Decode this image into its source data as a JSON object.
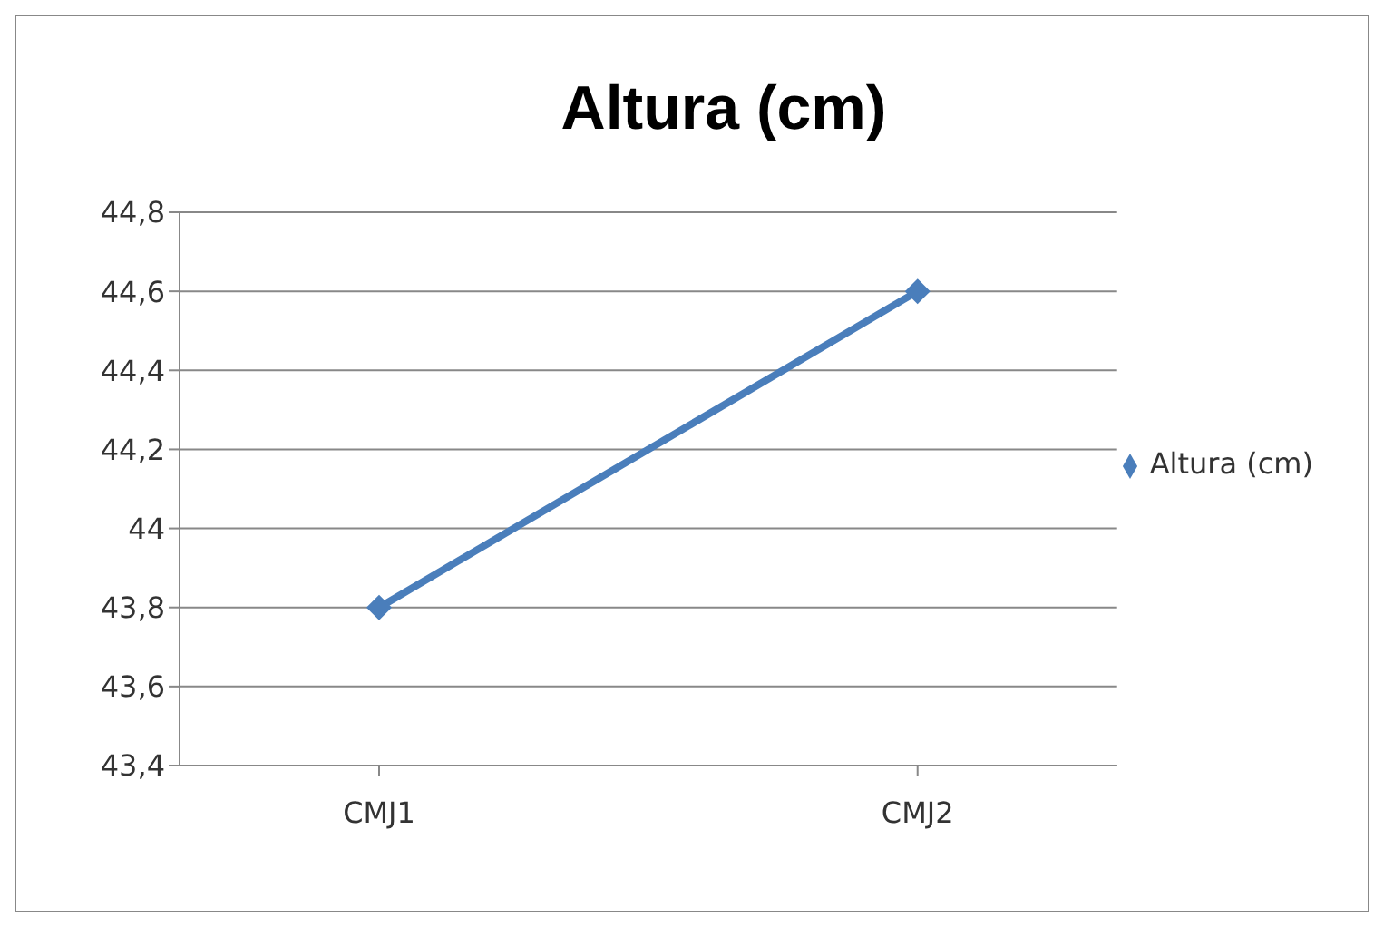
{
  "chart_data": {
    "type": "line",
    "title": "Altura (cm)",
    "categories": [
      "CMJ1",
      "CMJ2"
    ],
    "series": [
      {
        "name": "Altura (cm)",
        "color": "#4a7ebb",
        "values": [
          43.8,
          44.6
        ]
      }
    ],
    "ylim": [
      43.4,
      44.8
    ],
    "yticks": [
      {
        "value": 43.4,
        "label": "43,4"
      },
      {
        "value": 43.6,
        "label": "43,6"
      },
      {
        "value": 43.8,
        "label": "43,8"
      },
      {
        "value": 44,
        "label": "44"
      },
      {
        "value": 44.2,
        "label": "44,2"
      },
      {
        "value": 44.4,
        "label": "44,4"
      },
      {
        "value": 44.6,
        "label": "44,6"
      },
      {
        "value": 44.8,
        "label": "44,8"
      }
    ],
    "grid": "y",
    "legend": "right",
    "marker": "diamond",
    "line_style": "solid"
  }
}
